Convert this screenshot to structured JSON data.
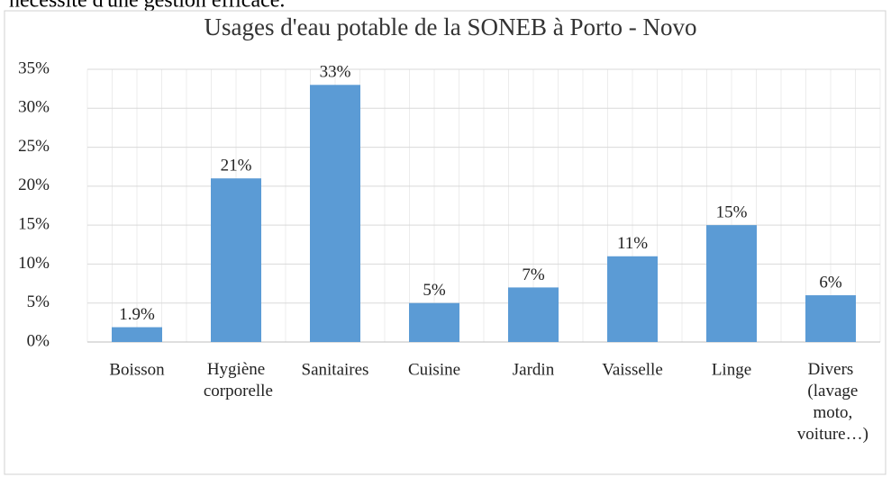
{
  "page_text": "nécessite d'une gestion efficace.",
  "chart_data": {
    "type": "bar",
    "title": "Usages d'eau potable de la SONEB à Porto - Novo",
    "categories": [
      "Boisson",
      "Hygiène corporelle",
      "Sanitaires",
      "Cuisine",
      "Jardin",
      "Vaisselle",
      "Linge",
      "Divers (lavage moto, voiture…)"
    ],
    "values": [
      1.9,
      21,
      33,
      5,
      7,
      11,
      15,
      6
    ],
    "value_labels": [
      "1.9%",
      "21%",
      "33%",
      "5%",
      "7%",
      "11%",
      "15%",
      "6%"
    ],
    "color": "#5b9bd5",
    "ylim": [
      0,
      35
    ],
    "yticks": [
      {
        "value": 0,
        "label": "0%"
      },
      {
        "value": 5,
        "label": "5%"
      },
      {
        "value": 10,
        "label": "10%"
      },
      {
        "value": 15,
        "label": "15%"
      },
      {
        "value": 20,
        "label": "20%"
      },
      {
        "value": 25,
        "label": "25%"
      },
      {
        "value": 30,
        "label": "30%"
      },
      {
        "value": 35,
        "label": "35%"
      }
    ],
    "grid": true
  }
}
